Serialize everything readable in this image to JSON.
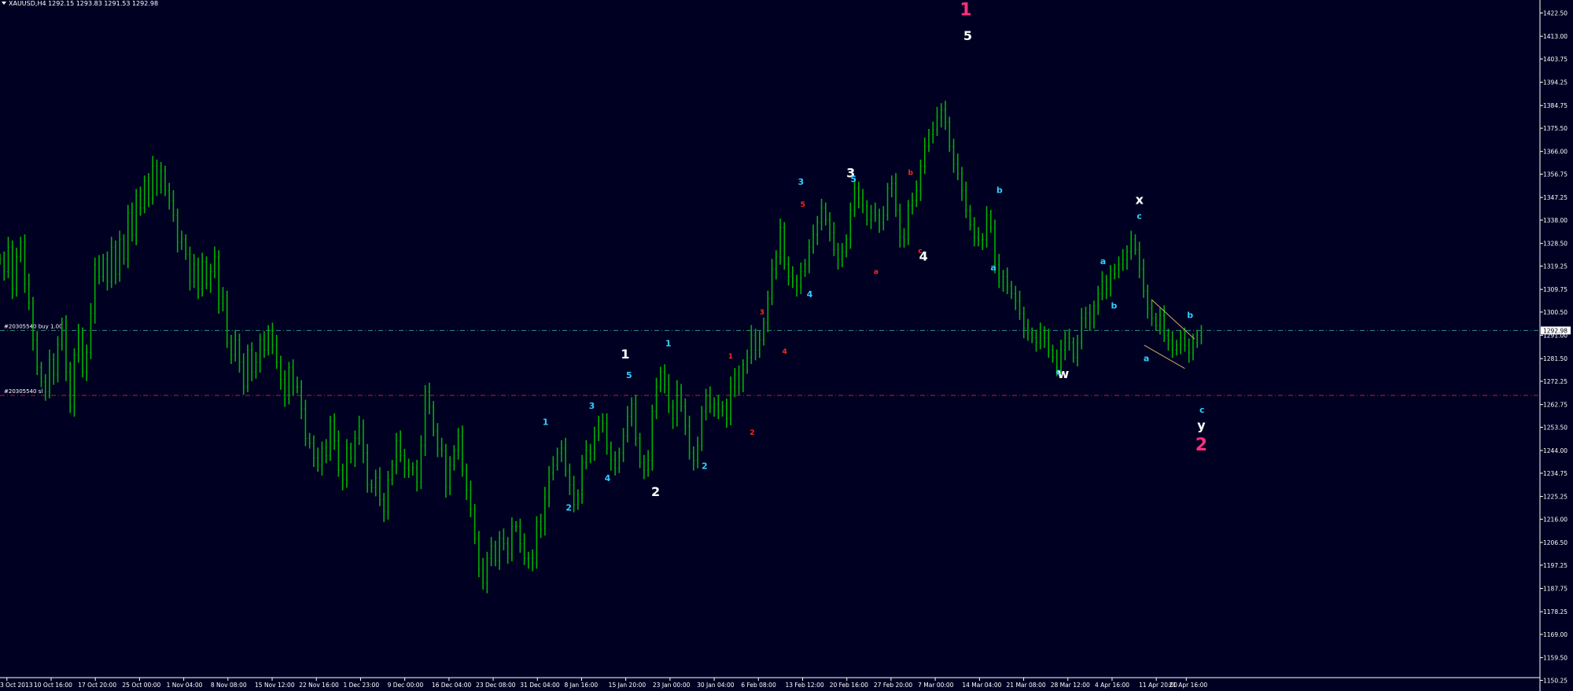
{
  "header": {
    "symbol_label": "XAUUSD,H4  1292.15 1293.83 1291.53 1292.98",
    "menu_icon": "triangle-down-icon"
  },
  "colors": {
    "background": "#000022",
    "candles": "#00b000",
    "axis_text": "#ffffff",
    "buy_line": "#2f8f7f",
    "sl_line": "#c82020",
    "wave_white": "#ffffff",
    "wave_cyan": "#33ccff",
    "wave_red": "#ff2a1a",
    "wave_pink": "#ff2f7f",
    "triangle": "#d2a86a",
    "current_price_box": "#ffffff"
  },
  "chart_data": {
    "type": "line",
    "ylim": [
      1145.9,
      1427.8
    ],
    "y_ticks": [
      "1422.50",
      "1413.00",
      "1403.75",
      "1394.25",
      "1384.75",
      "1375.50",
      "1366.00",
      "1356.75",
      "1347.25",
      "1338.00",
      "1328.50",
      "1319.25",
      "1309.75",
      "1300.50",
      "1291.00",
      "1281.50",
      "1272.25",
      "1262.75",
      "1253.50",
      "1244.00",
      "1234.75",
      "1225.25",
      "1216.00",
      "1206.50",
      "1197.25",
      "1187.75",
      "1178.25",
      "1169.00",
      "1159.50",
      "1150.25"
    ],
    "x_labels": [
      "3 Oct 2013",
      "10 Oct 16:00",
      "17 Oct 20:00",
      "25 Oct 00:00",
      "1 Nov 04:00",
      "8 Nov 08:00",
      "15 Nov 12:00",
      "22 Nov 16:00",
      "1 Dec 23:00",
      "9 Dec 00:00",
      "16 Dec 04:00",
      "23 Dec 08:00",
      "31 Dec 04:00",
      "8 Jan 16:00",
      "15 Jan 20:00",
      "23 Jan 00:00",
      "30 Jan 04:00",
      "6 Feb 08:00",
      "13 Feb 12:00",
      "20 Feb 16:00",
      "27 Feb 20:00",
      "7 Mar 00:00",
      "14 Mar 04:00",
      "21 Mar 08:00",
      "28 Mar 12:00",
      "4 Apr 16:00",
      "11 Apr 20:00",
      "21 Apr 16:00"
    ],
    "series": [
      {
        "values": [
          1322,
          1317,
          1327,
          1310,
          1323,
          1329,
          1312,
          1304,
          1289,
          1278,
          1272,
          1268,
          1281,
          1275,
          1287,
          1296,
          1276,
          1262,
          1283,
          1292,
          1276,
          1284,
          1300,
          1320,
          1315,
          1322,
          1313,
          1327,
          1316,
          1330,
          1322,
          1341,
          1332,
          1348,
          1343,
          1354,
          1347,
          1360,
          1352,
          1358,
          1350,
          1346,
          1340,
          1329,
          1330,
          1324,
          1313,
          1320,
          1310,
          1321,
          1312,
          1317,
          1323,
          1304,
          1307,
          1288,
          1283,
          1289,
          1280,
          1270,
          1285,
          1276,
          1280,
          1289,
          1285,
          1293,
          1287,
          1280,
          1273,
          1265,
          1278,
          1270,
          1270,
          1261,
          1249,
          1247,
          1241,
          1238,
          1245,
          1242,
          1256,
          1248,
          1236,
          1232,
          1245,
          1241,
          1249,
          1254,
          1243,
          1230,
          1229,
          1233,
          1224,
          1219,
          1232,
          1238,
          1248,
          1242,
          1237,
          1236,
          1237,
          1231,
          1246,
          1268,
          1262,
          1252,
          1245,
          1244,
          1229,
          1238,
          1244,
          1250,
          1236,
          1228,
          1220,
          1208,
          1196,
          1190,
          1200,
          1205,
          1199,
          1208,
          1206,
          1202,
          1213,
          1213,
          1206,
          1200,
          1200,
          1198,
          1215,
          1212,
          1225,
          1235,
          1238,
          1243,
          1245,
          1236,
          1230,
          1222,
          1226,
          1239,
          1244,
          1243,
          1250,
          1256,
          1255,
          1245,
          1240,
          1237,
          1243,
          1250,
          1258,
          1263,
          1249,
          1239,
          1236,
          1240,
          1260,
          1270,
          1276,
          1271,
          1262,
          1257,
          1269,
          1262,
          1254,
          1243,
          1240,
          1246,
          1260,
          1266,
          1262,
          1263,
          1260,
          1262,
          1257,
          1270,
          1275,
          1270,
          1279,
          1282,
          1291,
          1285,
          1289,
          1296,
          1306,
          1318,
          1323,
          1335,
          1320,
          1315,
          1313,
          1311,
          1317,
          1320,
          1327,
          1332,
          1337,
          1343,
          1338,
          1333,
          1326,
          1322,
          1325,
          1330,
          1342,
          1351,
          1347,
          1344,
          1338,
          1341,
          1340,
          1337,
          1340,
          1351,
          1353,
          1342,
          1331,
          1330,
          1344,
          1346,
          1350,
          1360,
          1368,
          1373,
          1375,
          1380,
          1383,
          1378,
          1368,
          1361,
          1357,
          1350,
          1342,
          1336,
          1331,
          1330,
          1330,
          1340,
          1335,
          1320,
          1313,
          1315,
          1311,
          1308,
          1305,
          1300,
          1294,
          1292,
          1290,
          1288,
          1292,
          1290,
          1285,
          1282,
          1278,
          1285,
          1290,
          1288,
          1282,
          1288,
          1298,
          1300,
          1296,
          1303,
          1308,
          1313,
          1310,
          1316,
          1318,
          1320,
          1322,
          1325,
          1330,
          1326,
          1318,
          1309,
          1302,
          1298,
          1295,
          1299,
          1291,
          1289,
          1285,
          1287,
          1290,
          1287,
          1284,
          1288,
          1291,
          1292
        ]
      }
    ],
    "reference_lines": [
      {
        "label": "#20305540 buy 1.00",
        "value": 1292.98
      },
      {
        "label": "#20305540 sl",
        "value": 1266.5
      }
    ],
    "current_price": "1292.98",
    "annotations": [
      {
        "text": "1",
        "color": "pink",
        "size": "xl",
        "x": 0.6281,
        "y": 1421.5
      },
      {
        "text": "5",
        "color": "white",
        "size": "l",
        "x": 0.6294,
        "y": 1411.5
      },
      {
        "text": "3",
        "color": "white",
        "size": "l",
        "x": 0.5533,
        "y": 1355.5
      },
      {
        "text": "4",
        "color": "white",
        "size": "l",
        "x": 0.6006,
        "y": 1321.5
      },
      {
        "text": "1",
        "color": "white",
        "size": "l",
        "x": 0.4066,
        "y": 1281.5
      },
      {
        "text": "2",
        "color": "white",
        "size": "l",
        "x": 0.4264,
        "y": 1225.5
      },
      {
        "text": "x",
        "color": "white",
        "size": "l",
        "x": 0.7411,
        "y": 1344.5
      },
      {
        "text": "w",
        "color": "white",
        "size": "l",
        "x": 0.6915,
        "y": 1273.5
      },
      {
        "text": "y",
        "color": "white",
        "size": "l",
        "x": 0.7813,
        "y": 1252.5
      },
      {
        "text": "2",
        "color": "pink",
        "size": "xl",
        "x": 0.7813,
        "y": 1244.0
      },
      {
        "text": "3",
        "color": "cyan",
        "size": "m",
        "x": 0.5209,
        "y": 1352.5
      },
      {
        "text": "5",
        "color": "cyan",
        "size": "m",
        "x": 0.5551,
        "y": 1353.5
      },
      {
        "text": "4",
        "color": "cyan",
        "size": "m",
        "x": 0.5266,
        "y": 1306.5
      },
      {
        "text": "1",
        "color": "cyan",
        "size": "m",
        "x": 0.4346,
        "y": 1286.5
      },
      {
        "text": "5",
        "color": "cyan",
        "size": "m",
        "x": 0.4091,
        "y": 1273.5
      },
      {
        "text": "3",
        "color": "cyan",
        "size": "m",
        "x": 0.3849,
        "y": 1261.0
      },
      {
        "text": "1",
        "color": "cyan",
        "size": "m",
        "x": 0.3548,
        "y": 1254.5
      },
      {
        "text": "4",
        "color": "cyan",
        "size": "m",
        "x": 0.3951,
        "y": 1231.5
      },
      {
        "text": "2",
        "color": "cyan",
        "size": "m",
        "x": 0.3699,
        "y": 1219.5
      },
      {
        "text": "2",
        "color": "cyan",
        "size": "m",
        "x": 0.4582,
        "y": 1236.5
      },
      {
        "text": "b",
        "color": "cyan",
        "size": "m",
        "x": 0.65,
        "y": 1349.0
      },
      {
        "text": "a",
        "color": "cyan",
        "size": "m",
        "x": 0.6461,
        "y": 1317.5
      },
      {
        "text": "c",
        "color": "cyan",
        "size": "m",
        "x": 0.6883,
        "y": 1275.0
      },
      {
        "text": "a",
        "color": "cyan",
        "size": "m",
        "x": 0.7174,
        "y": 1320.0
      },
      {
        "text": "b",
        "color": "cyan",
        "size": "m",
        "x": 0.7245,
        "y": 1302.0
      },
      {
        "text": "c",
        "color": "cyan",
        "size": "m",
        "x": 0.741,
        "y": 1338.5
      },
      {
        "text": "a",
        "color": "cyan",
        "size": "m",
        "x": 0.7456,
        "y": 1280.5
      },
      {
        "text": "b",
        "color": "cyan",
        "size": "m",
        "x": 0.774,
        "y": 1298.0
      },
      {
        "text": "c",
        "color": "cyan",
        "size": "m",
        "x": 0.7817,
        "y": 1259.5
      },
      {
        "text": "5",
        "color": "red",
        "size": "s",
        "x": 0.5221,
        "y": 1343.5
      },
      {
        "text": "3",
        "color": "red",
        "size": "s",
        "x": 0.4956,
        "y": 1299.5
      },
      {
        "text": "4",
        "color": "red",
        "size": "s",
        "x": 0.5103,
        "y": 1283.5
      },
      {
        "text": "1",
        "color": "red",
        "size": "s",
        "x": 0.4752,
        "y": 1281.5
      },
      {
        "text": "2",
        "color": "red",
        "size": "s",
        "x": 0.4892,
        "y": 1250.5
      },
      {
        "text": "b",
        "color": "red",
        "size": "s",
        "x": 0.5922,
        "y": 1356.5
      },
      {
        "text": "c",
        "color": "red",
        "size": "s",
        "x": 0.5984,
        "y": 1324.5
      },
      {
        "text": "a",
        "color": "red",
        "size": "s",
        "x": 0.5698,
        "y": 1316.0
      }
    ],
    "triangle": [
      [
        0.7491,
        1305.5
      ],
      [
        0.7769,
        1289.5
      ],
      [
        0.7441,
        1287.0
      ],
      [
        0.7705,
        1277.5
      ]
    ]
  }
}
